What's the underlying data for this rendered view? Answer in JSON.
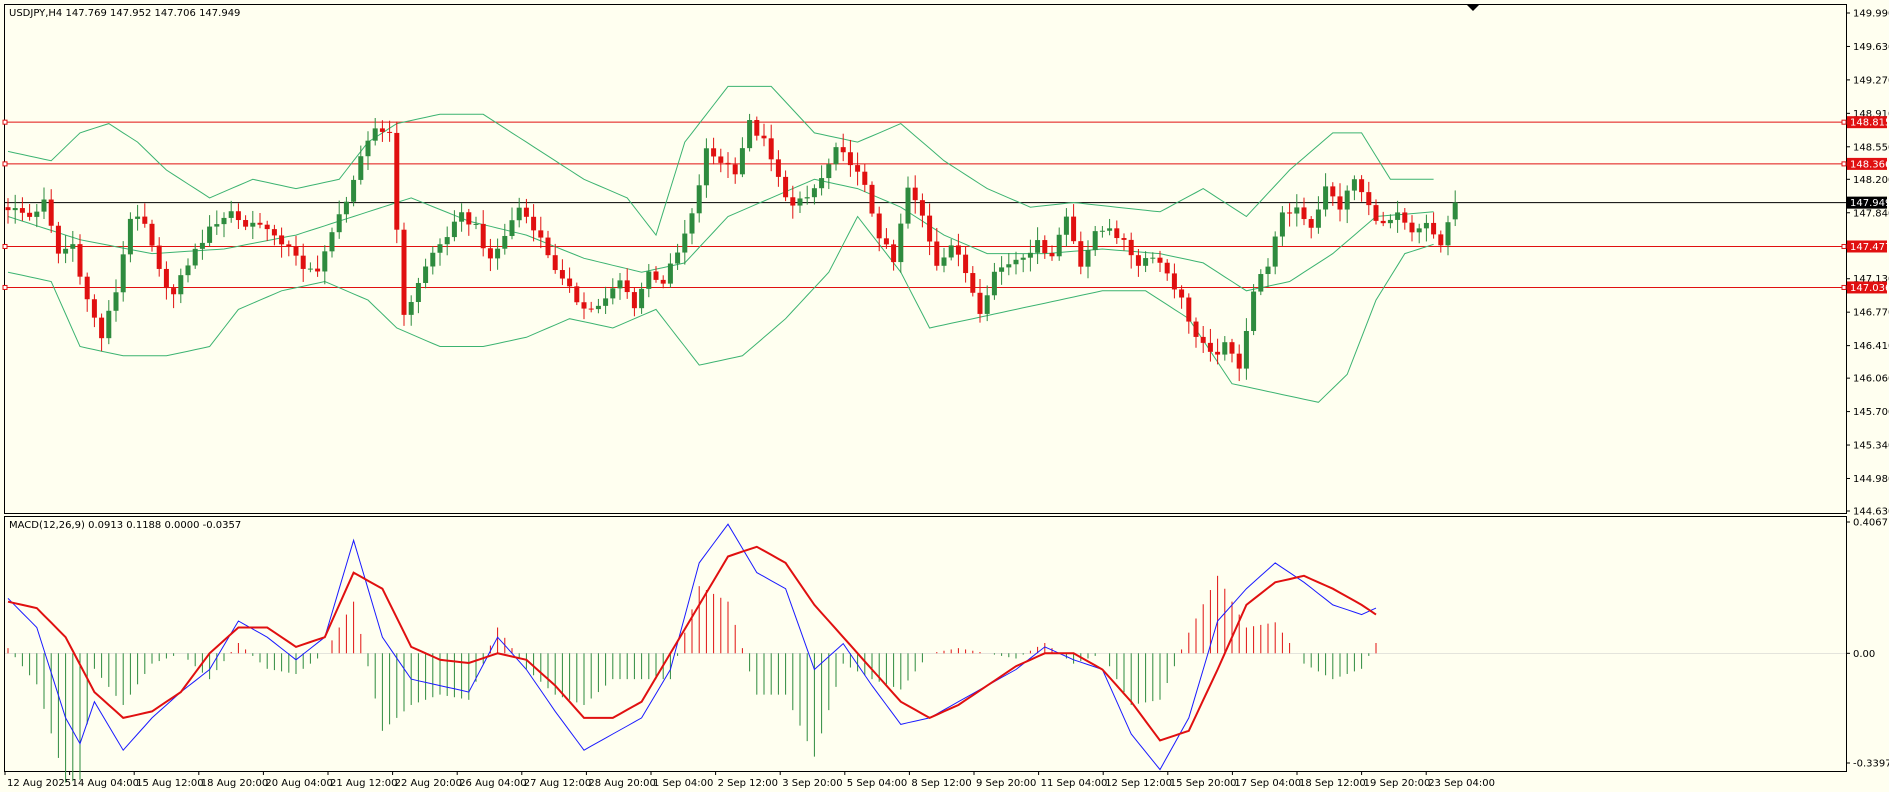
{
  "header": {
    "price_info": "USDJPY,H4  147.769 147.952 147.706 147.949",
    "macd_info": "MACD(12,26,9) 0.0913 0.1188 0.0000 -0.0357"
  },
  "colors": {
    "background": "#fffff0",
    "bull_candle": "#2e8b3e",
    "bear_candle": "#e01010",
    "bollinger": "#3cb371",
    "level_lines": "#e01010",
    "current_price_line": "#000000",
    "macd_line": "#1a1aff",
    "signal_line": "#e01010",
    "hist_positive": "#e01010",
    "hist_negative": "#2e8b3e",
    "tag_bg": "#e01010"
  },
  "chart_data": [
    {
      "type": "candlestick",
      "symbol": "USDJPY",
      "timeframe": "H4",
      "ylim": [
        144.63,
        149.99
      ],
      "y_ticks": [
        "149.990",
        "149.630",
        "149.270",
        "148.910",
        "148.550",
        "148.200",
        "147.840",
        "147.130",
        "146.770",
        "146.410",
        "146.060",
        "145.700",
        "145.340",
        "144.980",
        "144.630"
      ],
      "x_ticks": [
        "12 Aug 2025",
        "14 Aug 04:00",
        "15 Aug 12:00",
        "18 Aug 20:00",
        "20 Aug 04:00",
        "21 Aug 12:00",
        "22 Aug 20:00",
        "26 Aug 04:00",
        "27 Aug 12:00",
        "28 Aug 20:00",
        "1 Sep 04:00",
        "2 Sep 12:00",
        "3 Sep 20:00",
        "5 Sep 04:00",
        "8 Sep 12:00",
        "9 Sep 20:00",
        "11 Sep 04:00",
        "12 Sep 12:00",
        "15 Sep 20:00",
        "17 Sep 04:00",
        "18 Sep 12:00",
        "19 Sep 20:00",
        "23 Sep 04:00"
      ],
      "horizontal_levels": [
        {
          "value": 148.815,
          "label": "148.815"
        },
        {
          "value": 148.366,
          "label": "148.366"
        },
        {
          "value": 147.477,
          "label": "147.477"
        },
        {
          "value": 147.036,
          "label": "147.036"
        }
      ],
      "current_price": {
        "value": 147.949,
        "label": "147.949"
      },
      "close_path": [
        [
          0,
          147.9
        ],
        [
          3,
          147.8
        ],
        [
          5,
          147.95
        ],
        [
          7,
          147.4
        ],
        [
          9,
          147.5
        ],
        [
          11,
          146.9
        ],
        [
          13,
          146.5
        ],
        [
          15,
          147.0
        ],
        [
          17,
          147.8
        ],
        [
          19,
          147.7
        ],
        [
          21,
          147.2
        ],
        [
          23,
          146.95
        ],
        [
          25,
          147.3
        ],
        [
          27,
          147.55
        ],
        [
          29,
          147.75
        ],
        [
          31,
          147.85
        ],
        [
          33,
          147.7
        ],
        [
          35,
          147.75
        ],
        [
          37,
          147.55
        ],
        [
          39,
          147.5
        ],
        [
          41,
          147.2
        ],
        [
          43,
          147.25
        ],
        [
          45,
          147.6
        ],
        [
          47,
          148.0
        ],
        [
          49,
          148.4
        ],
        [
          51,
          148.75
        ],
        [
          53,
          148.7
        ],
        [
          55,
          146.7
        ],
        [
          57,
          147.1
        ],
        [
          59,
          147.4
        ],
        [
          61,
          147.6
        ],
        [
          63,
          147.8
        ],
        [
          65,
          147.7
        ],
        [
          67,
          147.3
        ],
        [
          69,
          147.6
        ],
        [
          71,
          147.9
        ],
        [
          73,
          147.7
        ],
        [
          75,
          147.4
        ],
        [
          77,
          147.1
        ],
        [
          79,
          146.9
        ],
        [
          81,
          146.8
        ],
        [
          83,
          146.9
        ],
        [
          85,
          147.1
        ],
        [
          87,
          146.85
        ],
        [
          89,
          147.2
        ],
        [
          91,
          147.1
        ],
        [
          93,
          147.4
        ],
        [
          95,
          147.8
        ],
        [
          97,
          148.5
        ],
        [
          99,
          148.4
        ],
        [
          101,
          148.3
        ],
        [
          103,
          148.8
        ],
        [
          105,
          148.6
        ],
        [
          107,
          148.2
        ],
        [
          109,
          147.9
        ],
        [
          111,
          148.0
        ],
        [
          113,
          148.2
        ],
        [
          115,
          148.5
        ],
        [
          117,
          148.4
        ],
        [
          119,
          148.1
        ],
        [
          121,
          147.6
        ],
        [
          123,
          147.3
        ],
        [
          125,
          148.1
        ],
        [
          127,
          147.8
        ],
        [
          129,
          147.3
        ],
        [
          131,
          147.5
        ],
        [
          133,
          147.2
        ],
        [
          135,
          146.8
        ],
        [
          137,
          147.2
        ],
        [
          139,
          147.3
        ],
        [
          141,
          147.4
        ],
        [
          143,
          147.5
        ],
        [
          145,
          147.4
        ],
        [
          147,
          147.8
        ],
        [
          149,
          147.3
        ],
        [
          151,
          147.6
        ],
        [
          153,
          147.7
        ],
        [
          155,
          147.5
        ],
        [
          157,
          147.3
        ],
        [
          159,
          147.4
        ],
        [
          161,
          147.2
        ],
        [
          163,
          146.9
        ],
        [
          165,
          146.5
        ],
        [
          167,
          146.3
        ],
        [
          169,
          146.4
        ],
        [
          171,
          146.2
        ],
        [
          173,
          147.0
        ],
        [
          175,
          147.3
        ],
        [
          177,
          147.8
        ],
        [
          179,
          147.9
        ],
        [
          181,
          147.7
        ],
        [
          183,
          148.1
        ],
        [
          185,
          147.9
        ],
        [
          187,
          148.2
        ],
        [
          189,
          147.9
        ],
        [
          191,
          147.7
        ],
        [
          193,
          147.8
        ],
        [
          195,
          147.6
        ],
        [
          197,
          147.7
        ],
        [
          199,
          147.5
        ],
        [
          201,
          147.95
        ]
      ],
      "bollinger_upper_path": [
        [
          0,
          148.5
        ],
        [
          6,
          148.4
        ],
        [
          10,
          148.7
        ],
        [
          14,
          148.8
        ],
        [
          18,
          148.6
        ],
        [
          22,
          148.3
        ],
        [
          28,
          148.0
        ],
        [
          34,
          148.2
        ],
        [
          40,
          148.1
        ],
        [
          46,
          148.2
        ],
        [
          50,
          148.6
        ],
        [
          54,
          148.8
        ],
        [
          60,
          148.9
        ],
        [
          66,
          148.9
        ],
        [
          70,
          148.7
        ],
        [
          74,
          148.5
        ],
        [
          80,
          148.2
        ],
        [
          86,
          148.0
        ],
        [
          90,
          147.6
        ],
        [
          94,
          148.6
        ],
        [
          100,
          149.2
        ],
        [
          106,
          149.2
        ],
        [
          112,
          148.7
        ],
        [
          118,
          148.6
        ],
        [
          124,
          148.8
        ],
        [
          130,
          148.4
        ],
        [
          136,
          148.1
        ],
        [
          142,
          147.9
        ],
        [
          148,
          147.95
        ],
        [
          154,
          147.9
        ],
        [
          160,
          147.85
        ],
        [
          166,
          148.1
        ],
        [
          172,
          147.8
        ],
        [
          178,
          148.3
        ],
        [
          184,
          148.7
        ],
        [
          188,
          148.7
        ],
        [
          192,
          148.2
        ],
        [
          198,
          148.2
        ]
      ],
      "bollinger_lower_path": [
        [
          0,
          147.2
        ],
        [
          6,
          147.1
        ],
        [
          10,
          146.4
        ],
        [
          16,
          146.3
        ],
        [
          22,
          146.3
        ],
        [
          28,
          146.4
        ],
        [
          32,
          146.8
        ],
        [
          38,
          147.0
        ],
        [
          44,
          147.1
        ],
        [
          50,
          146.9
        ],
        [
          54,
          146.6
        ],
        [
          60,
          146.4
        ],
        [
          66,
          146.4
        ],
        [
          72,
          146.5
        ],
        [
          78,
          146.7
        ],
        [
          84,
          146.6
        ],
        [
          90,
          146.8
        ],
        [
          96,
          146.2
        ],
        [
          102,
          146.3
        ],
        [
          108,
          146.7
        ],
        [
          114,
          147.2
        ],
        [
          118,
          147.8
        ],
        [
          124,
          147.2
        ],
        [
          128,
          146.6
        ],
        [
          134,
          146.7
        ],
        [
          140,
          146.8
        ],
        [
          146,
          146.9
        ],
        [
          152,
          147.0
        ],
        [
          158,
          147.0
        ],
        [
          164,
          146.7
        ],
        [
          170,
          146.0
        ],
        [
          176,
          145.9
        ],
        [
          182,
          145.8
        ],
        [
          186,
          146.1
        ],
        [
          190,
          146.9
        ],
        [
          194,
          147.4
        ],
        [
          198,
          147.5
        ]
      ],
      "bollinger_middle_path": [
        [
          0,
          147.8
        ],
        [
          10,
          147.55
        ],
        [
          20,
          147.4
        ],
        [
          30,
          147.45
        ],
        [
          40,
          147.6
        ],
        [
          50,
          147.85
        ],
        [
          56,
          148.0
        ],
        [
          64,
          147.75
        ],
        [
          72,
          147.6
        ],
        [
          80,
          147.35
        ],
        [
          88,
          147.2
        ],
        [
          94,
          147.3
        ],
        [
          100,
          147.8
        ],
        [
          106,
          148.0
        ],
        [
          112,
          148.2
        ],
        [
          118,
          148.1
        ],
        [
          124,
          147.9
        ],
        [
          130,
          147.6
        ],
        [
          136,
          147.4
        ],
        [
          144,
          147.4
        ],
        [
          152,
          147.45
        ],
        [
          160,
          147.4
        ],
        [
          166,
          147.3
        ],
        [
          172,
          147.0
        ],
        [
          178,
          147.1
        ],
        [
          184,
          147.4
        ],
        [
          190,
          147.8
        ],
        [
          198,
          147.85
        ]
      ]
    },
    {
      "type": "macd",
      "params": "12,26,9",
      "ylim": [
        -0.3397,
        0.4067
      ],
      "y_ticks": [
        "0.4067",
        "0.00",
        "-0.3397"
      ],
      "macd_path": [
        [
          0,
          0.17
        ],
        [
          4,
          0.08
        ],
        [
          8,
          -0.2
        ],
        [
          10,
          -0.28
        ],
        [
          12,
          -0.15
        ],
        [
          16,
          -0.3
        ],
        [
          20,
          -0.2
        ],
        [
          24,
          -0.12
        ],
        [
          28,
          -0.05
        ],
        [
          32,
          0.1
        ],
        [
          36,
          0.05
        ],
        [
          40,
          -0.02
        ],
        [
          44,
          0.05
        ],
        [
          48,
          0.35
        ],
        [
          52,
          0.05
        ],
        [
          56,
          -0.08
        ],
        [
          60,
          -0.1
        ],
        [
          64,
          -0.12
        ],
        [
          68,
          0.05
        ],
        [
          72,
          -0.05
        ],
        [
          76,
          -0.18
        ],
        [
          80,
          -0.3
        ],
        [
          84,
          -0.25
        ],
        [
          88,
          -0.2
        ],
        [
          92,
          -0.05
        ],
        [
          96,
          0.28
        ],
        [
          100,
          0.4
        ],
        [
          104,
          0.25
        ],
        [
          108,
          0.2
        ],
        [
          112,
          -0.05
        ],
        [
          116,
          0.03
        ],
        [
          120,
          -0.1
        ],
        [
          124,
          -0.22
        ],
        [
          128,
          -0.2
        ],
        [
          132,
          -0.15
        ],
        [
          136,
          -0.1
        ],
        [
          140,
          -0.05
        ],
        [
          144,
          0.02
        ],
        [
          148,
          -0.02
        ],
        [
          152,
          -0.05
        ],
        [
          156,
          -0.25
        ],
        [
          160,
          -0.36
        ],
        [
          164,
          -0.2
        ],
        [
          168,
          0.1
        ],
        [
          172,
          0.2
        ],
        [
          176,
          0.28
        ],
        [
          180,
          0.22
        ],
        [
          184,
          0.15
        ],
        [
          188,
          0.12
        ],
        [
          190,
          0.14
        ]
      ],
      "signal_path": [
        [
          0,
          0.16
        ],
        [
          4,
          0.14
        ],
        [
          8,
          0.05
        ],
        [
          12,
          -0.12
        ],
        [
          16,
          -0.2
        ],
        [
          20,
          -0.18
        ],
        [
          24,
          -0.12
        ],
        [
          28,
          0.0
        ],
        [
          32,
          0.08
        ],
        [
          36,
          0.08
        ],
        [
          40,
          0.02
        ],
        [
          44,
          0.05
        ],
        [
          48,
          0.25
        ],
        [
          52,
          0.2
        ],
        [
          56,
          0.02
        ],
        [
          60,
          -0.02
        ],
        [
          64,
          -0.03
        ],
        [
          68,
          0.0
        ],
        [
          72,
          -0.02
        ],
        [
          76,
          -0.1
        ],
        [
          80,
          -0.2
        ],
        [
          84,
          -0.2
        ],
        [
          88,
          -0.15
        ],
        [
          92,
          0.0
        ],
        [
          96,
          0.15
        ],
        [
          100,
          0.3
        ],
        [
          104,
          0.33
        ],
        [
          108,
          0.28
        ],
        [
          112,
          0.15
        ],
        [
          116,
          0.05
        ],
        [
          120,
          -0.05
        ],
        [
          124,
          -0.15
        ],
        [
          128,
          -0.2
        ],
        [
          132,
          -0.16
        ],
        [
          136,
          -0.1
        ],
        [
          140,
          -0.04
        ],
        [
          144,
          0.0
        ],
        [
          148,
          0.0
        ],
        [
          152,
          -0.05
        ],
        [
          156,
          -0.15
        ],
        [
          160,
          -0.27
        ],
        [
          164,
          -0.24
        ],
        [
          168,
          -0.05
        ],
        [
          172,
          0.15
        ],
        [
          176,
          0.22
        ],
        [
          180,
          0.24
        ],
        [
          184,
          0.2
        ],
        [
          188,
          0.15
        ],
        [
          190,
          0.12
        ]
      ]
    }
  ]
}
